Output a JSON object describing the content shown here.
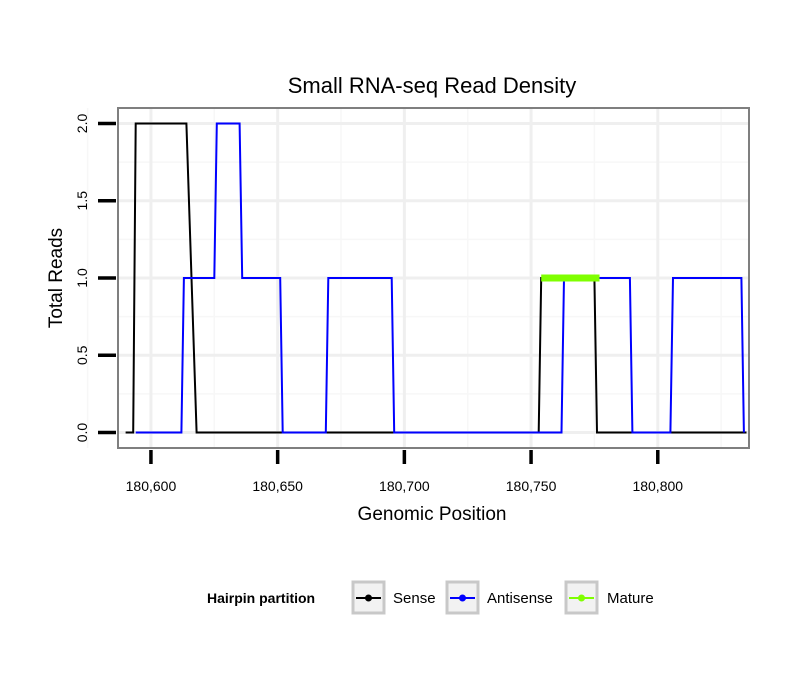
{
  "chart_data": {
    "type": "line",
    "title": "Small RNA-seq Read Density",
    "xlabel": "Genomic Position",
    "ylabel": "Total Reads",
    "xlim": [
      180587,
      180836
    ],
    "ylim": [
      -0.1,
      2.1
    ],
    "x_ticks": [
      180600,
      180650,
      180700,
      180750,
      180800
    ],
    "x_tick_labels": [
      "180,600",
      "180,650",
      "180,700",
      "180,750",
      "180,800"
    ],
    "y_ticks": [
      0.0,
      0.5,
      1.0,
      1.5,
      2.0
    ],
    "y_tick_labels": [
      "0.0",
      "0.5",
      "1.0",
      "1.5",
      "2.0"
    ],
    "grid": true,
    "legend": {
      "title": "Hairpin partition",
      "position": "bottom",
      "entries": [
        "Sense",
        "Antisense",
        "Mature"
      ]
    },
    "series": [
      {
        "name": "Sense",
        "color": "#000000",
        "step": true,
        "x": [
          180590,
          180593,
          180594,
          180614,
          180616,
          180618,
          180753,
          180754,
          180775,
          180776,
          180835
        ],
        "y": [
          0,
          0,
          2,
          2,
          1,
          0,
          0,
          1,
          1,
          0,
          0
        ]
      },
      {
        "name": "Antisense",
        "color": "#0000ff",
        "step": true,
        "x": [
          180594,
          180612,
          180613,
          180625,
          180626,
          180635,
          180636,
          180651,
          180652,
          180669,
          180670,
          180695,
          180696,
          180762,
          180763,
          180789,
          180790,
          180805,
          180806,
          180833,
          180834
        ],
        "y": [
          0,
          0,
          1,
          1,
          2,
          2,
          1,
          1,
          0,
          0,
          1,
          1,
          0,
          0,
          1,
          1,
          0,
          0,
          1,
          1,
          0
        ]
      },
      {
        "name": "Mature",
        "color": "#7fff00",
        "x": [
          180754,
          180777
        ],
        "y": [
          1,
          1
        ]
      }
    ]
  }
}
